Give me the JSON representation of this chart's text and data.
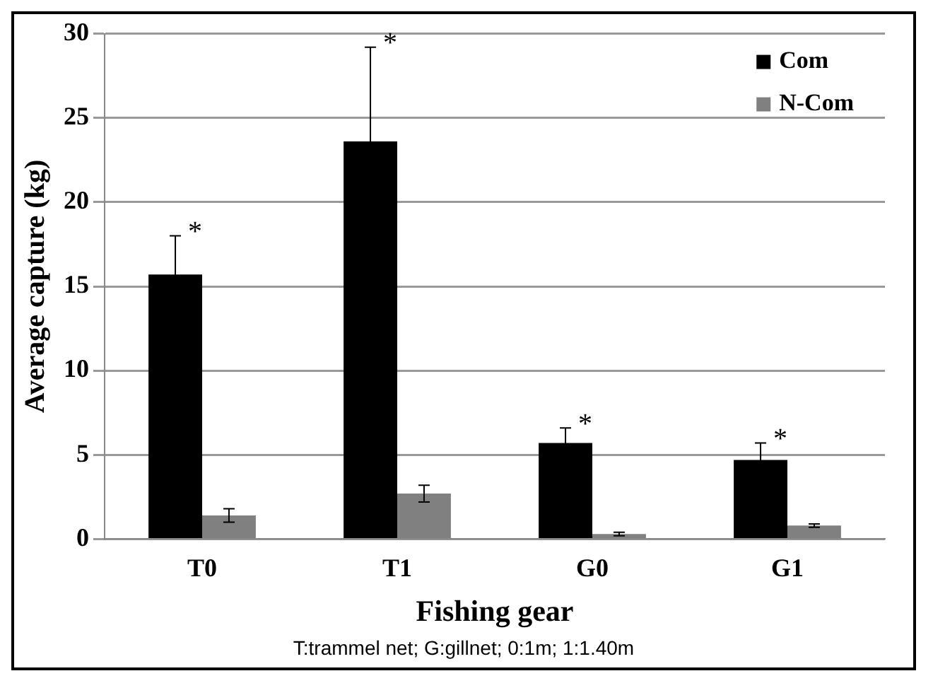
{
  "chart_data": {
    "type": "bar",
    "xlabel": "Fishing gear",
    "ylabel": "Average capture (kg)",
    "categories": [
      "T0",
      "T1",
      "G0",
      "G1"
    ],
    "series": [
      {
        "name": "Com",
        "color": "#000000",
        "values": [
          15.7,
          23.6,
          5.7,
          4.7
        ],
        "errors": [
          2.3,
          5.6,
          0.9,
          1.0
        ],
        "value_labels": [
          "*",
          "*",
          "*",
          "*"
        ]
      },
      {
        "name": "N-Com",
        "color": "#808080",
        "values": [
          1.4,
          2.7,
          0.3,
          0.8
        ],
        "errors": [
          0.4,
          0.5,
          0.1,
          0.1
        ]
      }
    ],
    "ylim": [
      0,
      30
    ],
    "yticks": [
      0,
      5,
      10,
      15,
      20,
      25,
      30
    ],
    "grid": "y",
    "legend": "top right",
    "annotations": [
      "T:trammel net; G:gillnet; 0:1m; 1:1.40m"
    ]
  }
}
